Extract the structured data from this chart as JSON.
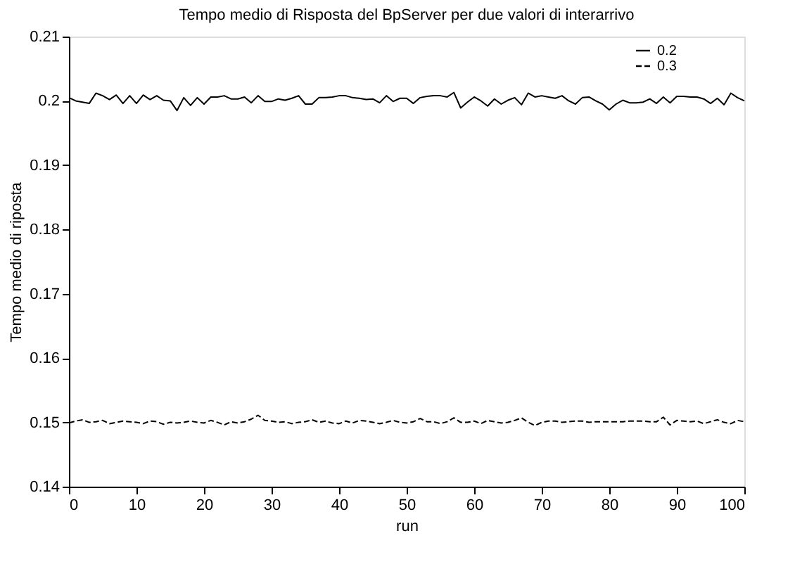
{
  "chart_data": {
    "type": "line",
    "title": "Tempo medio di Risposta del BpServer per due valori di interarrivo",
    "xlabel": "run",
    "ylabel": "Tempo medio di riposta",
    "x": [
      0,
      1,
      2,
      3,
      4,
      5,
      6,
      7,
      8,
      9,
      10,
      11,
      12,
      13,
      14,
      15,
      16,
      17,
      18,
      19,
      20,
      21,
      22,
      23,
      24,
      25,
      26,
      27,
      28,
      29,
      30,
      31,
      32,
      33,
      34,
      35,
      36,
      37,
      38,
      39,
      40,
      41,
      42,
      43,
      44,
      45,
      46,
      47,
      48,
      49,
      50,
      51,
      52,
      53,
      54,
      55,
      56,
      57,
      58,
      59,
      60,
      61,
      62,
      63,
      64,
      65,
      66,
      67,
      68,
      69,
      70,
      71,
      72,
      73,
      74,
      75,
      76,
      77,
      78,
      79,
      80,
      81,
      82,
      83,
      84,
      85,
      86,
      87,
      88,
      89,
      90,
      91,
      92,
      93,
      94,
      95,
      96,
      97,
      98,
      99,
      100
    ],
    "series": [
      {
        "name": "0.2",
        "color": "#000000",
        "line_style": "solid",
        "values": [
          0.2005,
          0.2,
          0.1998,
          0.1996,
          0.2012,
          0.2008,
          0.2002,
          0.2009,
          0.1996,
          0.2008,
          0.1996,
          0.2009,
          0.2002,
          0.2008,
          0.2001,
          0.2,
          0.1985,
          0.2005,
          0.1993,
          0.2005,
          0.1995,
          0.2006,
          0.2006,
          0.2008,
          0.2003,
          0.2003,
          0.2006,
          0.1997,
          0.2008,
          0.1999,
          0.1999,
          0.2003,
          0.2001,
          0.2004,
          0.2008,
          0.1995,
          0.1995,
          0.2005,
          0.2005,
          0.2006,
          0.2008,
          0.2008,
          0.2005,
          0.2004,
          0.2002,
          0.2003,
          0.1997,
          0.2008,
          0.1999,
          0.2004,
          0.2004,
          0.1996,
          0.2005,
          0.2007,
          0.2008,
          0.2008,
          0.2006,
          0.2013,
          0.1989,
          0.1998,
          0.2006,
          0.2,
          0.1992,
          0.2003,
          0.1995,
          0.2001,
          0.2005,
          0.1994,
          0.2012,
          0.2006,
          0.2008,
          0.2006,
          0.2004,
          0.2008,
          0.2,
          0.1995,
          0.2005,
          0.2006,
          0.2,
          0.1995,
          0.1986,
          0.1995,
          0.2001,
          0.1997,
          0.1997,
          0.1998,
          0.2003,
          0.1996,
          0.2006,
          0.1997,
          0.2007,
          0.2007,
          0.2006,
          0.2006,
          0.2003,
          0.1996,
          0.2004,
          0.1994,
          0.2012,
          0.2005,
          0.2
        ]
      },
      {
        "name": "0.3",
        "color": "#000000",
        "line_style": "dashed",
        "values": [
          0.1499,
          0.1502,
          0.1504,
          0.15,
          0.1501,
          0.1503,
          0.1498,
          0.15,
          0.1502,
          0.1501,
          0.15,
          0.1498,
          0.1502,
          0.1501,
          0.1497,
          0.15,
          0.1499,
          0.15,
          0.1502,
          0.15,
          0.1499,
          0.1503,
          0.15,
          0.1496,
          0.1501,
          0.1499,
          0.1501,
          0.1505,
          0.1511,
          0.1503,
          0.1502,
          0.15,
          0.1501,
          0.1498,
          0.15,
          0.1501,
          0.1504,
          0.15,
          0.1502,
          0.1499,
          0.1498,
          0.1502,
          0.1499,
          0.1503,
          0.1502,
          0.15,
          0.1498,
          0.15,
          0.1503,
          0.15,
          0.1499,
          0.1501,
          0.1506,
          0.1501,
          0.1501,
          0.1498,
          0.1501,
          0.1507,
          0.15,
          0.15,
          0.1502,
          0.1498,
          0.1503,
          0.1501,
          0.1499,
          0.15,
          0.1503,
          0.1507,
          0.15,
          0.1495,
          0.15,
          0.1502,
          0.1502,
          0.15,
          0.1501,
          0.1502,
          0.1502,
          0.15,
          0.1501,
          0.1501,
          0.1501,
          0.1501,
          0.1501,
          0.1502,
          0.1502,
          0.1502,
          0.1501,
          0.1501,
          0.1508,
          0.1496,
          0.1503,
          0.1502,
          0.1501,
          0.1502,
          0.1498,
          0.1501,
          0.1504,
          0.15,
          0.1498,
          0.1503,
          0.1501
        ]
      }
    ],
    "xlim": [
      0,
      100
    ],
    "xticks": [
      0,
      10,
      20,
      30,
      40,
      50,
      60,
      70,
      80,
      90,
      100
    ],
    "ylim": [
      0.14,
      0.21
    ],
    "yticks": [
      0.14,
      0.15,
      0.16,
      0.17,
      0.18,
      0.19,
      0.2,
      0.21
    ],
    "legend": "top right",
    "grid": false,
    "marker": "none"
  }
}
